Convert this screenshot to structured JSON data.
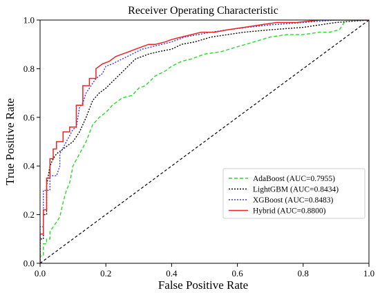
{
  "chart_data": {
    "type": "line",
    "title": "Receiver Operating Characteristic",
    "xlabel": "False Positive Rate",
    "ylabel": "True Positive Rate",
    "xlim": [
      0,
      1
    ],
    "ylim": [
      0,
      1
    ],
    "xticks": [
      "0.0",
      "0.2",
      "0.4",
      "0.6",
      "0.8",
      "1.0"
    ],
    "yticks": [
      "0.0",
      "0.2",
      "0.4",
      "0.6",
      "0.8",
      "1.0"
    ],
    "grid": false,
    "legend_position": "lower-right",
    "reference_line": {
      "x": [
        0,
        1
      ],
      "y": [
        0,
        1
      ],
      "style": "dashed",
      "color": "#000000"
    },
    "series": [
      {
        "name": "AdaBoost (AUC=0.7955)",
        "color": "#22dd22",
        "style": "dashed",
        "x": [
          0.0,
          0.0,
          0.01,
          0.01,
          0.02,
          0.02,
          0.03,
          0.03,
          0.05,
          0.06,
          0.07,
          0.08,
          0.09,
          0.1,
          0.12,
          0.14,
          0.16,
          0.18,
          0.2,
          0.22,
          0.25,
          0.28,
          0.3,
          0.32,
          0.35,
          0.38,
          0.4,
          0.43,
          0.46,
          0.5,
          0.55,
          0.6,
          0.65,
          0.7,
          0.75,
          0.8,
          0.85,
          0.88,
          0.91,
          0.92,
          0.93,
          1.0
        ],
        "y": [
          0.0,
          0.03,
          0.03,
          0.08,
          0.08,
          0.1,
          0.1,
          0.13,
          0.17,
          0.19,
          0.25,
          0.3,
          0.33,
          0.4,
          0.45,
          0.5,
          0.57,
          0.6,
          0.62,
          0.65,
          0.68,
          0.69,
          0.72,
          0.73,
          0.77,
          0.79,
          0.81,
          0.83,
          0.84,
          0.86,
          0.87,
          0.89,
          0.91,
          0.93,
          0.94,
          0.94,
          0.95,
          0.95,
          0.96,
          0.98,
          1.0,
          1.0
        ]
      },
      {
        "name": "LightGBM (AUC=0.8434)",
        "color": "#000000",
        "style": "dotted",
        "x": [
          0.0,
          0.0,
          0.01,
          0.01,
          0.02,
          0.02,
          0.03,
          0.04,
          0.05,
          0.07,
          0.08,
          0.1,
          0.12,
          0.13,
          0.14,
          0.16,
          0.18,
          0.2,
          0.23,
          0.26,
          0.29,
          0.33,
          0.36,
          0.4,
          0.43,
          0.47,
          0.52,
          0.57,
          0.62,
          0.7,
          0.8,
          0.9,
          1.0
        ],
        "y": [
          0.0,
          0.1,
          0.1,
          0.2,
          0.2,
          0.32,
          0.4,
          0.43,
          0.45,
          0.47,
          0.48,
          0.5,
          0.54,
          0.57,
          0.6,
          0.67,
          0.7,
          0.72,
          0.76,
          0.8,
          0.84,
          0.86,
          0.87,
          0.88,
          0.9,
          0.91,
          0.93,
          0.94,
          0.95,
          0.96,
          0.97,
          0.99,
          1.0
        ]
      },
      {
        "name": "XGBoost (AUC=0.8483)",
        "color": "#3333ff",
        "style": "dotted",
        "x": [
          0.0,
          0.0,
          0.01,
          0.01,
          0.03,
          0.03,
          0.05,
          0.06,
          0.06,
          0.08,
          0.1,
          0.11,
          0.12,
          0.13,
          0.14,
          0.15,
          0.17,
          0.19,
          0.2,
          0.22,
          0.25,
          0.28,
          0.31,
          0.34,
          0.37,
          0.4,
          0.44,
          0.48,
          0.52,
          0.57,
          0.63,
          0.7,
          0.8,
          0.9,
          1.0
        ],
        "y": [
          0.0,
          0.15,
          0.15,
          0.3,
          0.3,
          0.36,
          0.36,
          0.4,
          0.45,
          0.5,
          0.55,
          0.56,
          0.64,
          0.66,
          0.7,
          0.72,
          0.76,
          0.78,
          0.81,
          0.82,
          0.84,
          0.86,
          0.88,
          0.89,
          0.9,
          0.91,
          0.93,
          0.94,
          0.95,
          0.96,
          0.97,
          0.98,
          0.99,
          1.0,
          1.0
        ]
      },
      {
        "name": "Hybrid (AUC=0.8800)",
        "color": "#ee2222",
        "style": "solid",
        "x": [
          0.0,
          0.0,
          0.01,
          0.01,
          0.02,
          0.02,
          0.03,
          0.03,
          0.04,
          0.04,
          0.05,
          0.05,
          0.07,
          0.07,
          0.09,
          0.09,
          0.11,
          0.11,
          0.13,
          0.13,
          0.15,
          0.15,
          0.17,
          0.17,
          0.19,
          0.21,
          0.23,
          0.25,
          0.27,
          0.29,
          0.31,
          0.33,
          0.35,
          0.38,
          0.4,
          0.43,
          0.46,
          0.49,
          0.53,
          0.57,
          0.62,
          0.67,
          0.72,
          0.78,
          0.85,
          0.92,
          1.0
        ],
        "y": [
          0.0,
          0.12,
          0.12,
          0.22,
          0.22,
          0.35,
          0.35,
          0.43,
          0.43,
          0.47,
          0.47,
          0.5,
          0.5,
          0.54,
          0.54,
          0.56,
          0.56,
          0.65,
          0.65,
          0.73,
          0.73,
          0.76,
          0.76,
          0.8,
          0.82,
          0.83,
          0.85,
          0.86,
          0.87,
          0.88,
          0.89,
          0.9,
          0.9,
          0.91,
          0.92,
          0.93,
          0.94,
          0.95,
          0.95,
          0.96,
          0.97,
          0.98,
          0.99,
          0.99,
          1.0,
          1.0,
          1.0
        ]
      }
    ]
  }
}
